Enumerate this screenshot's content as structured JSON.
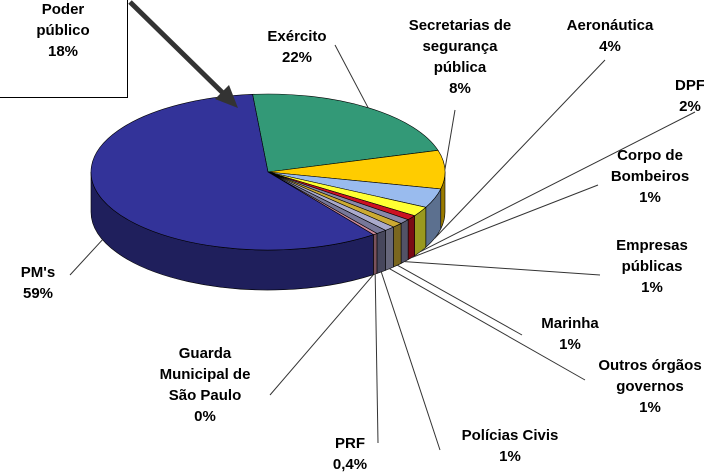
{
  "chart_data": {
    "type": "pie",
    "categories": [
      "Exército",
      "Secretarias de\nsegurança\npública",
      "Aeronáutica",
      "DPF",
      "Corpo de\nBombeiros",
      "Empresas\npúblicas",
      "Marinha",
      "Outros órgãos\ngovernos",
      "Polícias Civis",
      "PRF",
      "Guarda\nMunicipal de\nSão Paulo",
      "PM's"
    ],
    "values": [
      22,
      8,
      4,
      2,
      1,
      1,
      1,
      1,
      1,
      0.4,
      0,
      59
    ],
    "value_labels": [
      "22%",
      "8%",
      "4%",
      "2%",
      "1%",
      "1%",
      "1%",
      "1%",
      "1%",
      "0,4%",
      "0%",
      "59%"
    ],
    "colors": [
      "#339977",
      "#ffcc00",
      "#99bbee",
      "#ffff33",
      "#cc1122",
      "#8888aa",
      "#ccaa33",
      "#aaaacc",
      "#777799",
      "#cc8899",
      "#ffffff",
      "#333399"
    ],
    "annotation": "Poder\npúblico\n18%"
  }
}
